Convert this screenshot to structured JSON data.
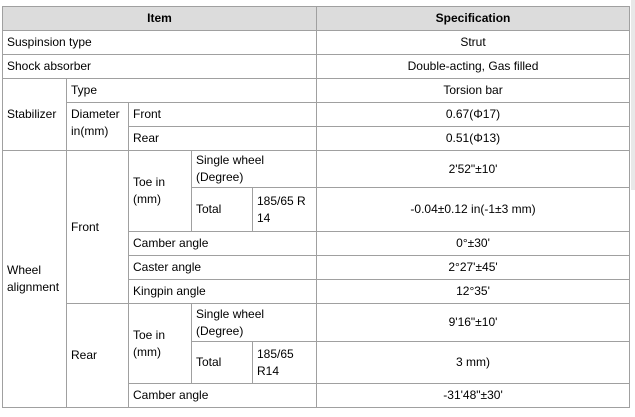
{
  "table": {
    "header": [
      "Item",
      "Specification"
    ],
    "rows": [
      [
        "Suspinsion type",
        "Strut"
      ],
      [
        "Shock absorber",
        "Double-acting, Gas filled"
      ],
      [
        "Stabilizer",
        "Type",
        "Torsion bar"
      ],
      [
        "Diameter in(mm)",
        "Front",
        "0.67(Φ17)"
      ],
      [
        "Rear",
        "0.51(Φ13)"
      ],
      [
        "Wheel alignment",
        "Front",
        "Toe in (mm)",
        "Single wheel (Degree)",
        "2'52\"±10'"
      ],
      [
        "Total",
        "185/65 R 14",
        "-0.04±0.12 in(-1±3 mm)"
      ],
      [
        "Camber angle",
        "0°±30'"
      ],
      [
        "Caster angle",
        "2°27'±45'"
      ],
      [
        "Kingpin angle",
        "12°35'"
      ],
      [
        "Rear",
        "Toe in (mm)",
        "Single wheel (Degree)",
        "9'16\"±10'"
      ],
      [
        "Total",
        "185/65 R14",
        "3 mm)"
      ],
      [
        "Camber angle",
        "-31'48\"±30'"
      ]
    ]
  }
}
